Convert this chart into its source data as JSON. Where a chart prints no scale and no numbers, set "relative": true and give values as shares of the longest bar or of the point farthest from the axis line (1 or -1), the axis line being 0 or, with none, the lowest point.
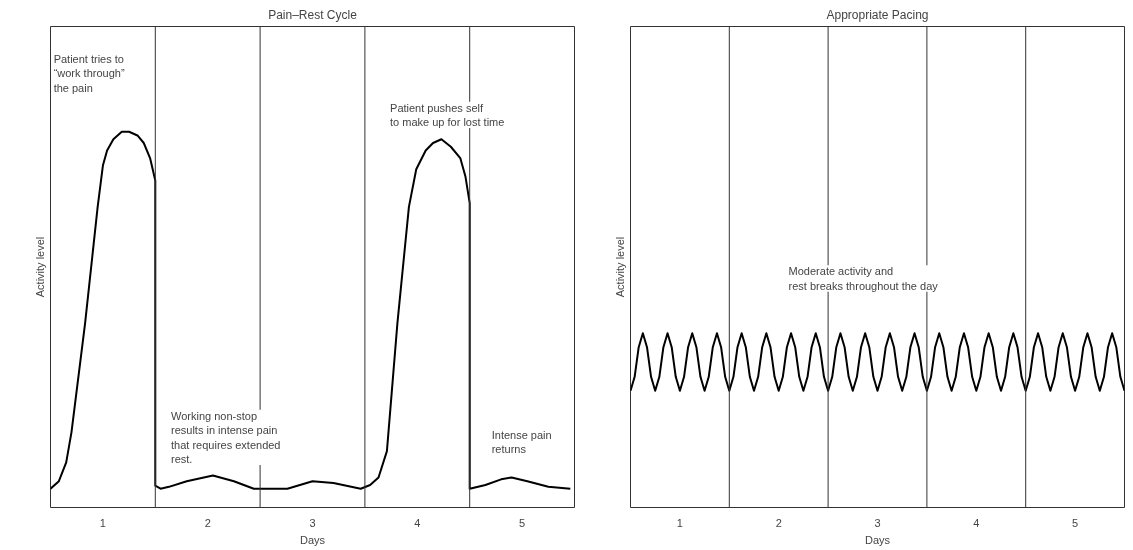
{
  "chart_data": [
    {
      "type": "line",
      "relative": true,
      "title": "Pain–Rest Cycle",
      "xlabel": "Days",
      "ylabel": "Activity level",
      "xlim": [
        0.5,
        5.5
      ],
      "xticks": [
        1,
        2,
        3,
        4,
        5
      ],
      "color": "#000000",
      "x": [
        0.5,
        0.58,
        0.65,
        0.7,
        0.83,
        0.95,
        1.0,
        1.04,
        1.1,
        1.18,
        1.25,
        1.33,
        1.39,
        1.45,
        1.5,
        1.5,
        1.55,
        1.63,
        1.8,
        2.05,
        2.25,
        2.44,
        2.76,
        2.88,
        3.0,
        3.2,
        3.46,
        3.55,
        3.63,
        3.71,
        3.81,
        3.92,
        3.99,
        4.08,
        4.15,
        4.23,
        4.32,
        4.41,
        4.46,
        4.5,
        4.5,
        4.65,
        4.8,
        4.9,
        5.05,
        5.25,
        5.46
      ],
      "values": [
        0.05,
        0.07,
        0.12,
        0.2,
        0.49,
        0.8,
        0.91,
        0.95,
        0.98,
        1.0,
        1.0,
        0.99,
        0.97,
        0.93,
        0.87,
        0.058,
        0.05,
        0.055,
        0.07,
        0.085,
        0.07,
        0.05,
        0.05,
        0.06,
        0.07,
        0.065,
        0.05,
        0.06,
        0.08,
        0.15,
        0.49,
        0.8,
        0.9,
        0.95,
        0.97,
        0.98,
        0.96,
        0.93,
        0.88,
        0.81,
        0.05,
        0.06,
        0.075,
        0.08,
        0.07,
        0.055,
        0.05
      ],
      "ref_lines": [
        {
          "axis": "x",
          "value": 1.5,
          "label": null
        },
        {
          "axis": "x",
          "value": 2.5,
          "label": null
        },
        {
          "axis": "x",
          "value": 3.5,
          "label": null
        },
        {
          "axis": "x",
          "value": 4.5,
          "label": null
        }
      ],
      "annotations": [
        "Patient tries to\n“work through”\nthe pain",
        "Working non-stop\nresults in intense pain\nthat requires extended\nrest.",
        "Patient pushes self\nto make up for lost time",
        "Intense pain\nreturns"
      ]
    },
    {
      "type": "line",
      "relative": true,
      "title": "Appropriate Pacing",
      "xlabel": "Days",
      "ylabel": "Activity level",
      "xlim": [
        0.5,
        5.5
      ],
      "xticks": [
        1,
        2,
        3,
        4,
        5
      ],
      "color": "#000000",
      "x": [
        0.5,
        0.542,
        0.583,
        0.625,
        0.667,
        0.708,
        0.75,
        0.792,
        0.833,
        0.875,
        0.917,
        0.958,
        1.0,
        1.042,
        1.083,
        1.125,
        1.167,
        1.208,
        1.25,
        1.292,
        1.333,
        1.375,
        1.417,
        1.458,
        1.5,
        1.542,
        1.583,
        1.625,
        1.667,
        1.708,
        1.75,
        1.792,
        1.833,
        1.875,
        1.917,
        1.958,
        2.0,
        2.042,
        2.083,
        2.125,
        2.167,
        2.208,
        2.25,
        2.292,
        2.333,
        2.375,
        2.417,
        2.458,
        2.5,
        2.542,
        2.583,
        2.625,
        2.667,
        2.708,
        2.75,
        2.792,
        2.833,
        2.875,
        2.917,
        2.958,
        3.0,
        3.042,
        3.083,
        3.125,
        3.167,
        3.208,
        3.25,
        3.292,
        3.333,
        3.375,
        3.417,
        3.458,
        3.5,
        3.542,
        3.583,
        3.625,
        3.667,
        3.708,
        3.75,
        3.792,
        3.833,
        3.875,
        3.917,
        3.958,
        4.0,
        4.042,
        4.083,
        4.125,
        4.167,
        4.208,
        4.25,
        4.292,
        4.333,
        4.375,
        4.417,
        4.458,
        4.5,
        4.542,
        4.583,
        4.625,
        4.667,
        4.708,
        4.75,
        4.792,
        4.833,
        4.875,
        4.917,
        4.958,
        5.0,
        5.042,
        5.083,
        5.125,
        5.167,
        5.208,
        5.25,
        5.292,
        5.333,
        5.375,
        5.417,
        5.458,
        5.5
      ],
      "values": [
        0.67,
        0.75,
        0.92,
        1,
        0.92,
        0.75,
        0.67,
        0.75,
        0.92,
        1,
        0.92,
        0.75,
        0.67,
        0.75,
        0.92,
        1,
        0.92,
        0.75,
        0.67,
        0.75,
        0.92,
        1,
        0.92,
        0.75,
        0.67,
        0.75,
        0.92,
        1,
        0.92,
        0.75,
        0.67,
        0.75,
        0.92,
        1,
        0.92,
        0.75,
        0.67,
        0.75,
        0.92,
        1,
        0.92,
        0.75,
        0.67,
        0.75,
        0.92,
        1,
        0.92,
        0.75,
        0.67,
        0.75,
        0.92,
        1,
        0.92,
        0.75,
        0.67,
        0.75,
        0.92,
        1,
        0.92,
        0.75,
        0.67,
        0.75,
        0.92,
        1,
        0.92,
        0.75,
        0.67,
        0.75,
        0.92,
        1,
        0.92,
        0.75,
        0.67,
        0.75,
        0.92,
        1,
        0.92,
        0.75,
        0.67,
        0.75,
        0.92,
        1,
        0.92,
        0.75,
        0.67,
        0.75,
        0.92,
        1,
        0.92,
        0.75,
        0.67,
        0.75,
        0.92,
        1,
        0.92,
        0.75,
        0.67,
        0.75,
        0.92,
        1,
        0.92,
        0.75,
        0.67,
        0.75,
        0.92,
        1,
        0.92,
        0.75,
        0.67,
        0.75,
        0.92,
        1,
        0.92,
        0.75,
        0.67,
        0.75,
        0.92,
        1,
        0.92,
        0.75,
        0.67
      ],
      "ref_lines": [
        {
          "axis": "x",
          "value": 1.5,
          "label": null
        },
        {
          "axis": "x",
          "value": 2.5,
          "label": null
        },
        {
          "axis": "x",
          "value": 3.5,
          "label": null
        },
        {
          "axis": "x",
          "value": 4.5,
          "label": null
        }
      ],
      "annotations": [
        "Moderate activity and\nrest breaks throughout the day"
      ]
    }
  ]
}
